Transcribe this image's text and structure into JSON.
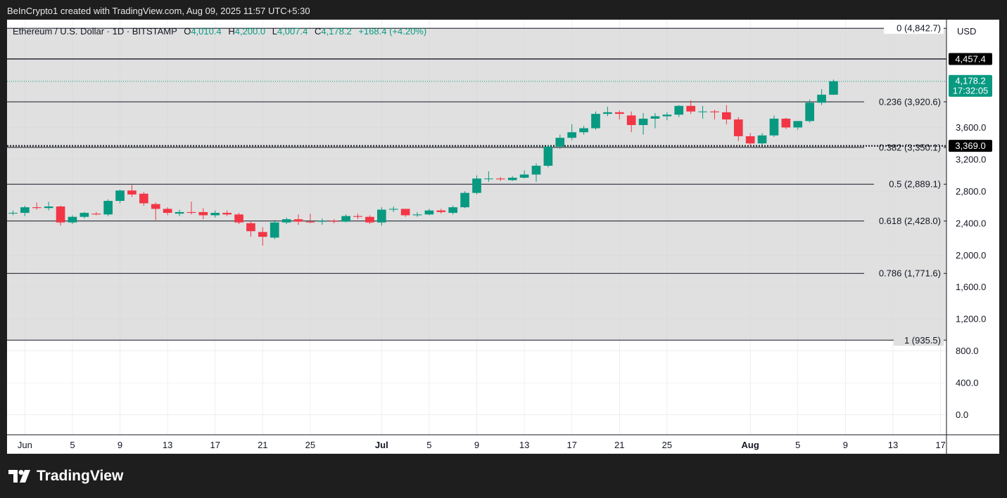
{
  "header": {
    "attribution": "BeInCrypto1 created with TradingView.com, Aug 09, 2025 11:57 UTC+5:30"
  },
  "legend": {
    "symbol": "Ethereum / U.S. Dollar · 1D · BITSTAMP",
    "o_label": "O",
    "o_value": "4,010.4",
    "h_label": "H",
    "h_value": "4,200.0",
    "l_label": "L",
    "l_value": "4,007.4",
    "c_label": "C",
    "c_value": "4,178.2",
    "change": "+168.4 (+4.20%)"
  },
  "footer": {
    "brand": "TradingView",
    "logo_icon": "tradingview-logo-icon"
  },
  "colors": {
    "up": "#089981",
    "down": "#f23645",
    "fib_zone": "#e0e0e0",
    "text": "#131722",
    "label_bg": "#000000",
    "price_label": "#089981"
  },
  "chart_data": {
    "type": "candlestick",
    "currency": "USD",
    "ylim": [
      -250,
      4950
    ],
    "y_ticks": [
      "0.0",
      "400.0",
      "800.0",
      "1,200.0",
      "1,600.0",
      "2,000.0",
      "2,400.0",
      "2,800.0",
      "3,200.0",
      "3,600.0"
    ],
    "x_ticks": [
      {
        "date": "2025-06-01",
        "label": "Jun"
      },
      {
        "date": "2025-06-05",
        "label": "5"
      },
      {
        "date": "2025-06-09",
        "label": "9"
      },
      {
        "date": "2025-06-13",
        "label": "13"
      },
      {
        "date": "2025-06-17",
        "label": "17"
      },
      {
        "date": "2025-06-21",
        "label": "21"
      },
      {
        "date": "2025-06-25",
        "label": "25"
      },
      {
        "date": "2025-07-01",
        "label": "Jul",
        "bold": true
      },
      {
        "date": "2025-07-05",
        "label": "5"
      },
      {
        "date": "2025-07-09",
        "label": "9"
      },
      {
        "date": "2025-07-13",
        "label": "13"
      },
      {
        "date": "2025-07-17",
        "label": "17"
      },
      {
        "date": "2025-07-21",
        "label": "21"
      },
      {
        "date": "2025-07-25",
        "label": "25"
      },
      {
        "date": "2025-08-01",
        "label": "Aug",
        "bold": true
      },
      {
        "date": "2025-08-05",
        "label": "5"
      },
      {
        "date": "2025-08-09",
        "label": "9"
      },
      {
        "date": "2025-08-13",
        "label": "13"
      },
      {
        "date": "2025-08-17",
        "label": "17"
      }
    ],
    "x_range": [
      "2025-05-31",
      "2025-08-18"
    ],
    "fib_levels": [
      {
        "level": 0,
        "price": 4842.7,
        "label": "0 (4,842.7)"
      },
      {
        "level": 0.236,
        "price": 3920.6,
        "label": "0.236 (3,920.6)"
      },
      {
        "level": 0.382,
        "price": 3350.1,
        "label": "0.382 (3,350.1)"
      },
      {
        "level": 0.5,
        "price": 2889.1,
        "label": "0.5 (2,889.1)"
      },
      {
        "level": 0.618,
        "price": 2428.0,
        "label": "0.618 (2,428.0)"
      },
      {
        "level": 0.786,
        "price": 1771.6,
        "label": "0.786 (1,771.6)"
      },
      {
        "level": 1,
        "price": 935.5,
        "label": "1 (935.5)"
      }
    ],
    "resistance": {
      "price": 4457.4,
      "label": "4,457.4"
    },
    "support": {
      "price": 3369.0,
      "label": "3,369.0"
    },
    "last_price": {
      "price": 4178.2,
      "label": "4,178.2",
      "countdown": "17:32:05"
    },
    "candles": [
      {
        "d": "2025-05-31",
        "o": 2530,
        "h": 2560,
        "l": 2500,
        "c": 2530
      },
      {
        "d": "2025-06-01",
        "o": 2530,
        "h": 2620,
        "l": 2490,
        "c": 2600
      },
      {
        "d": "2025-06-02",
        "o": 2600,
        "h": 2660,
        "l": 2570,
        "c": 2590
      },
      {
        "d": "2025-06-03",
        "o": 2590,
        "h": 2670,
        "l": 2560,
        "c": 2610
      },
      {
        "d": "2025-06-04",
        "o": 2610,
        "h": 2620,
        "l": 2370,
        "c": 2410
      },
      {
        "d": "2025-06-05",
        "o": 2410,
        "h": 2500,
        "l": 2390,
        "c": 2480
      },
      {
        "d": "2025-06-06",
        "o": 2480,
        "h": 2540,
        "l": 2460,
        "c": 2530
      },
      {
        "d": "2025-06-07",
        "o": 2520,
        "h": 2540,
        "l": 2500,
        "c": 2510
      },
      {
        "d": "2025-06-08",
        "o": 2510,
        "h": 2700,
        "l": 2490,
        "c": 2680
      },
      {
        "d": "2025-06-09",
        "o": 2680,
        "h": 2820,
        "l": 2650,
        "c": 2810
      },
      {
        "d": "2025-06-10",
        "o": 2810,
        "h": 2880,
        "l": 2730,
        "c": 2760
      },
      {
        "d": "2025-06-11",
        "o": 2770,
        "h": 2790,
        "l": 2620,
        "c": 2650
      },
      {
        "d": "2025-06-12",
        "o": 2640,
        "h": 2660,
        "l": 2440,
        "c": 2580
      },
      {
        "d": "2025-06-13",
        "o": 2580,
        "h": 2600,
        "l": 2500,
        "c": 2530
      },
      {
        "d": "2025-06-14",
        "o": 2520,
        "h": 2570,
        "l": 2490,
        "c": 2540
      },
      {
        "d": "2025-06-15",
        "o": 2540,
        "h": 2670,
        "l": 2510,
        "c": 2530
      },
      {
        "d": "2025-06-16",
        "o": 2540,
        "h": 2590,
        "l": 2450,
        "c": 2500
      },
      {
        "d": "2025-06-17",
        "o": 2500,
        "h": 2560,
        "l": 2470,
        "c": 2530
      },
      {
        "d": "2025-06-18",
        "o": 2530,
        "h": 2560,
        "l": 2490,
        "c": 2510
      },
      {
        "d": "2025-06-19",
        "o": 2510,
        "h": 2530,
        "l": 2390,
        "c": 2410
      },
      {
        "d": "2025-06-20",
        "o": 2400,
        "h": 2430,
        "l": 2230,
        "c": 2300
      },
      {
        "d": "2025-06-21",
        "o": 2290,
        "h": 2350,
        "l": 2120,
        "c": 2230
      },
      {
        "d": "2025-06-22",
        "o": 2220,
        "h": 2440,
        "l": 2200,
        "c": 2410
      },
      {
        "d": "2025-06-23",
        "o": 2410,
        "h": 2470,
        "l": 2390,
        "c": 2450
      },
      {
        "d": "2025-06-24",
        "o": 2450,
        "h": 2510,
        "l": 2380,
        "c": 2420
      },
      {
        "d": "2025-06-25",
        "o": 2420,
        "h": 2520,
        "l": 2400,
        "c": 2410
      },
      {
        "d": "2025-06-26",
        "o": 2420,
        "h": 2460,
        "l": 2380,
        "c": 2430
      },
      {
        "d": "2025-06-27",
        "o": 2430,
        "h": 2450,
        "l": 2400,
        "c": 2420
      },
      {
        "d": "2025-06-28",
        "o": 2420,
        "h": 2510,
        "l": 2410,
        "c": 2490
      },
      {
        "d": "2025-06-29",
        "o": 2490,
        "h": 2520,
        "l": 2450,
        "c": 2480
      },
      {
        "d": "2025-06-30",
        "o": 2480,
        "h": 2500,
        "l": 2390,
        "c": 2410
      },
      {
        "d": "2025-07-01",
        "o": 2410,
        "h": 2600,
        "l": 2370,
        "c": 2570
      },
      {
        "d": "2025-07-02",
        "o": 2570,
        "h": 2610,
        "l": 2540,
        "c": 2580
      },
      {
        "d": "2025-07-03",
        "o": 2580,
        "h": 2580,
        "l": 2480,
        "c": 2500
      },
      {
        "d": "2025-07-04",
        "o": 2500,
        "h": 2540,
        "l": 2480,
        "c": 2510
      },
      {
        "d": "2025-07-05",
        "o": 2510,
        "h": 2580,
        "l": 2500,
        "c": 2560
      },
      {
        "d": "2025-07-06",
        "o": 2560,
        "h": 2580,
        "l": 2520,
        "c": 2540
      },
      {
        "d": "2025-07-07",
        "o": 2530,
        "h": 2620,
        "l": 2510,
        "c": 2600
      },
      {
        "d": "2025-07-08",
        "o": 2600,
        "h": 2800,
        "l": 2590,
        "c": 2780
      },
      {
        "d": "2025-07-09",
        "o": 2780,
        "h": 3000,
        "l": 2760,
        "c": 2960
      },
      {
        "d": "2025-07-10",
        "o": 2960,
        "h": 3050,
        "l": 2920,
        "c": 2960
      },
      {
        "d": "2025-07-11",
        "o": 2960,
        "h": 2980,
        "l": 2930,
        "c": 2950
      },
      {
        "d": "2025-07-12",
        "o": 2940,
        "h": 2990,
        "l": 2930,
        "c": 2970
      },
      {
        "d": "2025-07-13",
        "o": 2970,
        "h": 3060,
        "l": 2960,
        "c": 3010
      },
      {
        "d": "2025-07-14",
        "o": 3010,
        "h": 3150,
        "l": 2920,
        "c": 3120
      },
      {
        "d": "2025-07-15",
        "o": 3120,
        "h": 3380,
        "l": 3100,
        "c": 3360
      },
      {
        "d": "2025-07-16",
        "o": 3360,
        "h": 3510,
        "l": 3330,
        "c": 3470
      },
      {
        "d": "2025-07-17",
        "o": 3470,
        "h": 3640,
        "l": 3440,
        "c": 3540
      },
      {
        "d": "2025-07-18",
        "o": 3540,
        "h": 3620,
        "l": 3510,
        "c": 3590
      },
      {
        "d": "2025-07-19",
        "o": 3590,
        "h": 3800,
        "l": 3570,
        "c": 3770
      },
      {
        "d": "2025-07-20",
        "o": 3770,
        "h": 3860,
        "l": 3740,
        "c": 3790
      },
      {
        "d": "2025-07-21",
        "o": 3790,
        "h": 3810,
        "l": 3700,
        "c": 3770
      },
      {
        "d": "2025-07-22",
        "o": 3750,
        "h": 3800,
        "l": 3540,
        "c": 3630
      },
      {
        "d": "2025-07-23",
        "o": 3630,
        "h": 3780,
        "l": 3510,
        "c": 3710
      },
      {
        "d": "2025-07-24",
        "o": 3710,
        "h": 3780,
        "l": 3590,
        "c": 3740
      },
      {
        "d": "2025-07-25",
        "o": 3740,
        "h": 3790,
        "l": 3690,
        "c": 3760
      },
      {
        "d": "2025-07-26",
        "o": 3760,
        "h": 3880,
        "l": 3730,
        "c": 3870
      },
      {
        "d": "2025-07-27",
        "o": 3870,
        "h": 3940,
        "l": 3770,
        "c": 3800
      },
      {
        "d": "2025-07-28",
        "o": 3800,
        "h": 3870,
        "l": 3710,
        "c": 3800
      },
      {
        "d": "2025-07-29",
        "o": 3800,
        "h": 3820,
        "l": 3700,
        "c": 3790
      },
      {
        "d": "2025-07-30",
        "o": 3790,
        "h": 3880,
        "l": 3640,
        "c": 3700
      },
      {
        "d": "2025-07-31",
        "o": 3700,
        "h": 3730,
        "l": 3430,
        "c": 3490
      },
      {
        "d": "2025-08-01",
        "o": 3490,
        "h": 3530,
        "l": 3370,
        "c": 3400
      },
      {
        "d": "2025-08-02",
        "o": 3400,
        "h": 3530,
        "l": 3380,
        "c": 3500
      },
      {
        "d": "2025-08-03",
        "o": 3500,
        "h": 3750,
        "l": 3480,
        "c": 3710
      },
      {
        "d": "2025-08-04",
        "o": 3710,
        "h": 3720,
        "l": 3580,
        "c": 3600
      },
      {
        "d": "2025-08-05",
        "o": 3600,
        "h": 3680,
        "l": 3570,
        "c": 3680
      },
      {
        "d": "2025-08-06",
        "o": 3680,
        "h": 3950,
        "l": 3660,
        "c": 3910
      },
      {
        "d": "2025-08-07",
        "o": 3910,
        "h": 4080,
        "l": 3880,
        "c": 4010
      },
      {
        "d": "2025-08-08",
        "o": 4010,
        "h": 4200,
        "l": 4007,
        "c": 4178
      }
    ]
  }
}
